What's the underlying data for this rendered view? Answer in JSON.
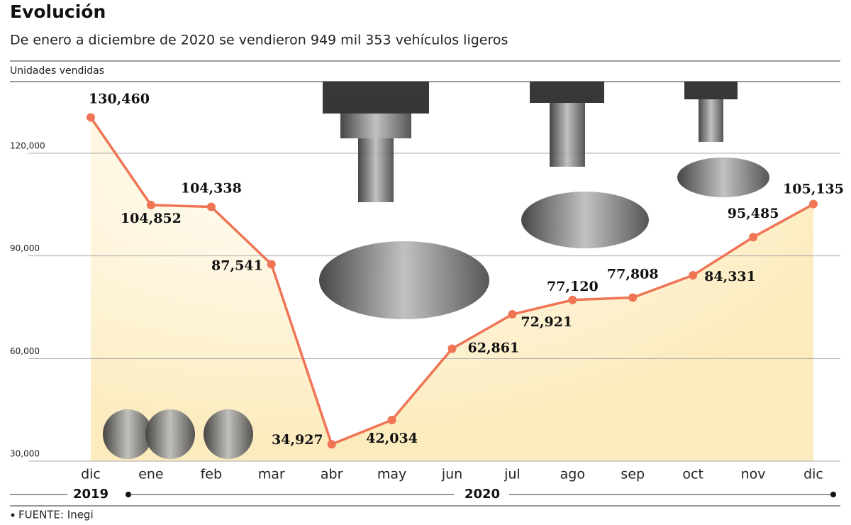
{
  "chart_data": {
    "type": "line",
    "title": "Evolución",
    "subtitle": "De enero a diciembre de 2020 se vendieron 949 mil 353 vehículos ligeros",
    "y_label": "Unidades vendidas",
    "categories": [
      "dic",
      "ene",
      "feb",
      "mar",
      "abr",
      "may",
      "jun",
      "jul",
      "ago",
      "sep",
      "oct",
      "nov",
      "dic"
    ],
    "year_labels": [
      "2019",
      "2020"
    ],
    "series": [
      {
        "color": "#ef7554",
        "values": [
          130460,
          104852,
          104338,
          87541,
          34927,
          42034,
          62861,
          72921,
          77120,
          77808,
          84331,
          95485,
          105135
        ],
        "value_labels": [
          "130,460",
          "104,852",
          "104,338",
          "87,541",
          "34,927",
          "42,034",
          "62,861",
          "72,921",
          "77,120",
          "77,808",
          "84,331",
          "95,485",
          "105,135"
        ]
      }
    ],
    "ylim": [
      30000,
      140000
    ],
    "yticks": [
      {
        "value": 30000,
        "label": "30,000"
      },
      {
        "value": 60000,
        "label": "60,000"
      },
      {
        "value": 90000,
        "label": "90,000"
      },
      {
        "value": 120000,
        "label": "120,000"
      }
    ],
    "grid": true,
    "source": "FUENTE: Inegi"
  }
}
